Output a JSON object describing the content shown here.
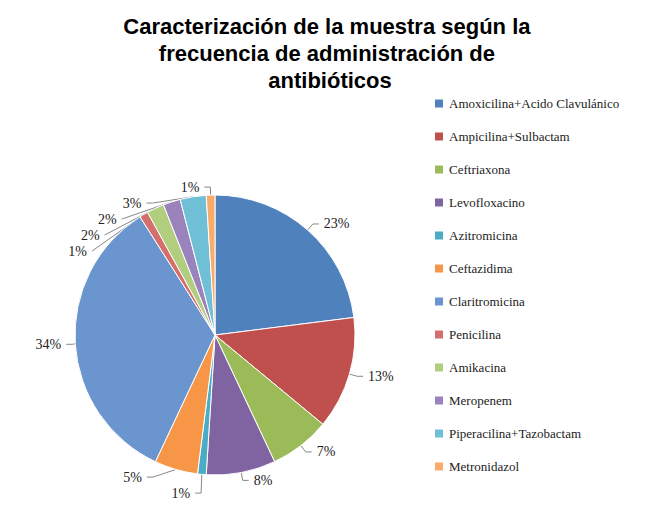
{
  "chart_data": {
    "type": "pie",
    "title": "Caracterización de la muestra según la frecuencia de administración de antibióticos",
    "categories": [
      "Amoxicilina+Acido Clavulánico",
      "Ampicilina+Sulbactam",
      "Ceftriaxona",
      "Levofloxacino",
      "Azitromicina",
      "Ceftazidima",
      "Claritromicina",
      "Penicilina",
      "Amikacina",
      "Meropenem",
      "Piperacilina+Tazobactam",
      "Metronidazol"
    ],
    "values": [
      23,
      13,
      7,
      8,
      1,
      5,
      34,
      1,
      2,
      2,
      3,
      1
    ],
    "value_labels": [
      "23%",
      "13%",
      "7%",
      "8%",
      "1%",
      "5%",
      "34%",
      "1%",
      "2%",
      "2%",
      "3%",
      "1%"
    ],
    "colors": [
      "#4F81BD",
      "#C0504D",
      "#9BBB59",
      "#8064A2",
      "#4BACC6",
      "#F79646",
      "#6A95CE",
      "#D46F6C",
      "#B1CE7F",
      "#9A82BC",
      "#6FC0D6",
      "#F9AB6B"
    ],
    "data_labels": true,
    "legend": "right"
  }
}
